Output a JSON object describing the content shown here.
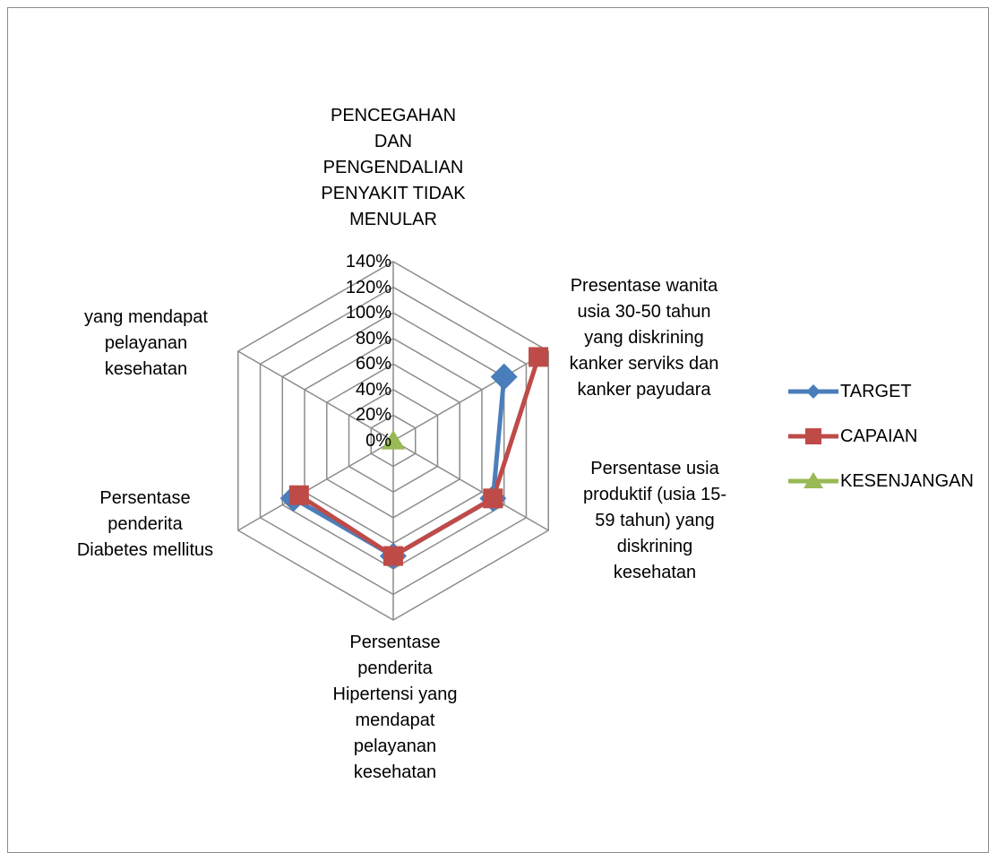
{
  "chart_data": {
    "type": "radar",
    "title": "",
    "axes": [
      {
        "lines": [
          "PENCEGAHAN",
          "DAN",
          "PENGENDALIAN",
          "PENYAKIT TIDAK",
          "MENULAR"
        ]
      },
      {
        "lines": [
          "Presentase wanita",
          "usia 30-50 tahun",
          "yang diskrining",
          "kanker serviks dan",
          "kanker payudara"
        ]
      },
      {
        "lines": [
          "Persentase usia",
          "produktif (usia 15-",
          "59 tahun) yang",
          "diskrining",
          "kesehatan"
        ]
      },
      {
        "lines": [
          "Persentase",
          "penderita",
          "Hipertensi yang",
          "mendapat",
          "pelayanan",
          "kesehatan"
        ]
      },
      {
        "lines": [
          "Persentase",
          "penderita",
          "Diabetes mellitus"
        ]
      },
      {
        "lines": [
          "yang mendapat",
          "pelayanan",
          "kesehatan"
        ]
      }
    ],
    "rlim": [
      0,
      1.4
    ],
    "ticks": [
      "0%",
      "20%",
      "40%",
      "60%",
      "80%",
      "100%",
      "120%",
      "140%"
    ],
    "series": [
      {
        "name": "TARGET",
        "color": "#4a7ebb",
        "marker": "diamond",
        "values": [
          null,
          1.0,
          0.9,
          0.9,
          0.9,
          null
        ]
      },
      {
        "name": "CAPAIAN",
        "color": "#be4b48",
        "marker": "square",
        "values": [
          null,
          1.31,
          0.9,
          0.9,
          0.85,
          null
        ]
      },
      {
        "name": "KESENJANGAN",
        "color": "#98b954",
        "marker": "triangle",
        "values": [
          0,
          null,
          null,
          null,
          null,
          null
        ]
      }
    ],
    "legend_position": "right",
    "grid": true
  }
}
